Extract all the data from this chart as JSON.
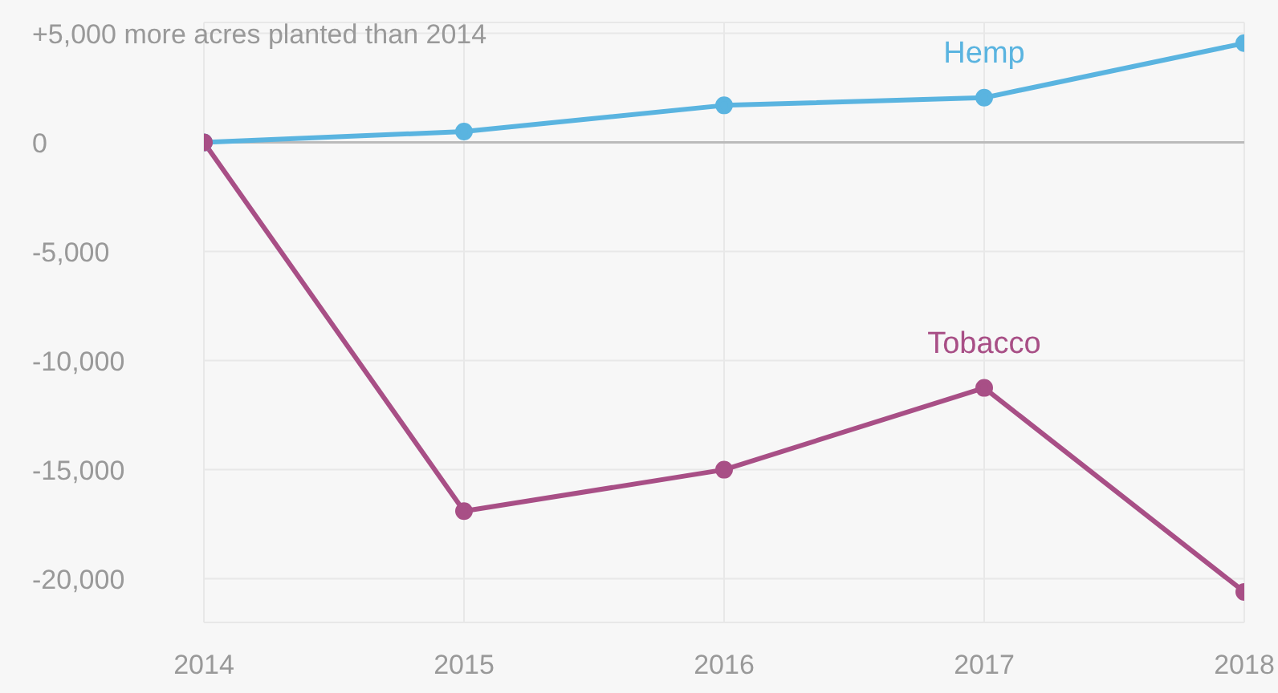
{
  "chart_data": {
    "type": "line",
    "x": [
      2014,
      2015,
      2016,
      2017,
      2018
    ],
    "xlim": [
      2014,
      2018
    ],
    "xticks": [
      2014,
      2015,
      2016,
      2017,
      2018
    ],
    "ylim": [
      -22000,
      5500
    ],
    "yticks": [
      {
        "value": -20000,
        "label": "-20,000"
      },
      {
        "value": -15000,
        "label": "-15,000"
      },
      {
        "value": -10000,
        "label": "-10,000"
      },
      {
        "value": -5000,
        "label": "-5,000"
      },
      0,
      {
        "value": 5000,
        "label": "+5,000 more acres planted than 2014"
      }
    ],
    "series": [
      {
        "name": "Hemp",
        "color": "#5ab4e0",
        "values": [
          0,
          500,
          1700,
          2050,
          4550
        ]
      },
      {
        "name": "Tobacco",
        "color": "#a84f86",
        "values": [
          0,
          -16900,
          -15000,
          -11250,
          -20600
        ]
      }
    ],
    "ref_lines": [
      {
        "axis": "y",
        "value": 0,
        "color": "#bbbbbb"
      }
    ],
    "grid": true,
    "marker": "circle"
  }
}
